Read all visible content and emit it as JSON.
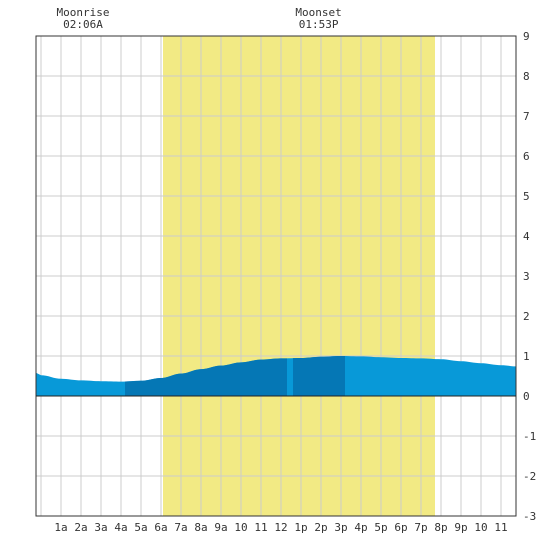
{
  "moon_events": [
    {
      "label": "Moonrise",
      "time": "02:06A",
      "hour": 2.1
    },
    {
      "label": "Moonset",
      "time": "01:53P",
      "hour": 13.88
    }
  ],
  "chart_data": {
    "type": "area",
    "x_tick_labels": [
      "1a",
      "2a",
      "3a",
      "4a",
      "5a",
      "6a",
      "7a",
      "8a",
      "9a",
      "10",
      "11",
      "12",
      "1p",
      "2p",
      "3p",
      "4p",
      "5p",
      "6p",
      "7p",
      "8p",
      "9p",
      "10",
      "11"
    ],
    "x_range_hours": [
      -0.25,
      23.75
    ],
    "y_range": [
      -3,
      9
    ],
    "y_ticks": [
      9,
      8,
      7,
      6,
      5,
      4,
      3,
      2,
      1,
      0,
      -1,
      -2,
      -3
    ],
    "grid": true,
    "daylight_hours": [
      6.1,
      19.7
    ],
    "tide_series": {
      "hours": [
        -0.25,
        0,
        1,
        2,
        3,
        4,
        5,
        6,
        7,
        8,
        9,
        10,
        11,
        12,
        13,
        14,
        15,
        16,
        17,
        18,
        19,
        20,
        21,
        22,
        23,
        23.75
      ],
      "heights": [
        0.58,
        0.52,
        0.43,
        0.39,
        0.37,
        0.36,
        0.38,
        0.45,
        0.56,
        0.67,
        0.76,
        0.84,
        0.91,
        0.94,
        0.95,
        0.98,
        1.0,
        0.99,
        0.97,
        0.95,
        0.94,
        0.92,
        0.87,
        0.82,
        0.77,
        0.74
      ]
    },
    "shade_bands": [
      [
        4.2,
        12.3
      ],
      [
        12.6,
        15.2
      ]
    ],
    "colors": {
      "daylight": "#f2ea84",
      "water": "#0899d8",
      "water_dark": "#0577b5",
      "grid": "#cccccc",
      "frame": "#333333",
      "baseline": "#222222"
    }
  }
}
